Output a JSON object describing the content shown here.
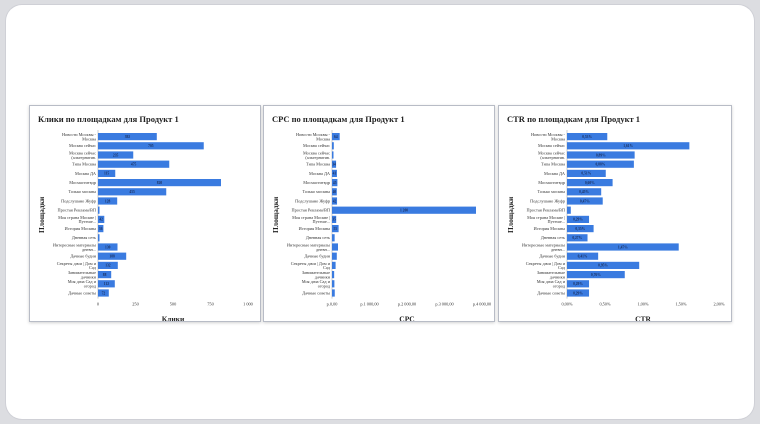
{
  "chart_data": [
    {
      "type": "bar",
      "orientation": "horizontal",
      "title": "Клики по площадкам для Продукт 1",
      "xlabel": "Клики",
      "ylabel": "Площадки",
      "color": "#3a7be0",
      "categories": [
        "Новости Москвы - Москва",
        "Москва сейчас",
        "Москва сейчас (альтернатив. версия)",
        "Типа Москва",
        "Москва ДА",
        "Мосмаститвдр",
        "Только москвы",
        "Подслушано Жуфр",
        "Простая Реклама/ВП",
        "Моя страна Москве | Путеше...",
        "История Москвы",
        "Дневная сеть",
        "Интересные материалы дневн...",
        "Дачные будни",
        "Секреты дачи | Дом и Сад",
        "Занимательные дачники",
        "Моя дача Сад и огород",
        "Дачные советы"
      ],
      "values": [
        392,
        705,
        235,
        475,
        115,
        820,
        455,
        128,
        8,
        42,
        36,
        10,
        130,
        188,
        132,
        88,
        112,
        72
      ],
      "value_labels": [
        "392",
        "705",
        "235",
        "475",
        "115",
        "820",
        "455",
        "128",
        "",
        "42",
        "36",
        "",
        "130",
        "188",
        "132",
        "88",
        "112",
        "72"
      ],
      "xlim": [
        0,
        1000
      ],
      "xticks": [
        "0",
        "250",
        "500",
        "750",
        "1 000"
      ]
    },
    {
      "type": "bar",
      "orientation": "horizontal",
      "title": "CPC по площадкам для Продукт 1",
      "xlabel": "CPC",
      "ylabel": "Площадки",
      "color": "#3a7be0",
      "categories": [
        "Новости Москвы - Москва",
        "Москва сейчас",
        "Москва сейчас (альтернатив. версия)",
        "Типа Москва",
        "Москва ДА",
        "Мосмаститвдр",
        "Только москвы",
        "Подслушано Жуфр",
        "Простая Реклама/ВП",
        "Моя страна Москве | Путеше...",
        "История Москвы",
        "Дневная сеть",
        "Интересные материалы дневн...",
        "Дачные будни",
        "Секреты дачи | Дом и Сад",
        "Занимательные дачники",
        "Моя дача Сад и огород",
        "Дачные советы"
      ],
      "values": [
        64,
        15,
        12,
        34,
        41,
        45,
        40,
        42,
        1200,
        35,
        55,
        22,
        50,
        40,
        30,
        18,
        20,
        23
      ],
      "value_labels": [
        "64",
        "",
        "",
        "34",
        "41",
        "45",
        "40",
        "42",
        "1 200",
        "35",
        "55",
        "",
        "",
        "",
        "",
        "",
        "",
        ""
      ],
      "xlim": [
        0,
        1250
      ],
      "xticks": [
        "р.0,00",
        "р.1 000,00",
        "р.2 000,00",
        "р.3 000,00",
        "р.4 000,00"
      ]
    },
    {
      "type": "bar",
      "orientation": "horizontal",
      "title": "CTR по площадкам для Продукт 1",
      "xlabel": "CTR",
      "ylabel": "Площадки",
      "color": "#3a7be0",
      "categories": [
        "Новости Москвы - Москва",
        "Москва сейчас",
        "Москва сейчас (альтернатив. версия)",
        "Типа Москва",
        "Москва ДА",
        "Мосмаститвдр",
        "Только москвы",
        "Подслушано Жуфр",
        "Простая Реклама/ВП",
        "Моя страна Москве | Путеше...",
        "История Москвы",
        "Дневная сеть",
        "Интересные материалы дневн...",
        "Дачные будни",
        "Секреты дачи | Дом и Сад",
        "Занимательные дачники",
        "Моя дача Сад и огород",
        "Дачные советы"
      ],
      "values": [
        0.53,
        1.61,
        0.89,
        0.88,
        0.51,
        0.6,
        0.45,
        0.47,
        0.05,
        0.29,
        0.35,
        0.27,
        1.47,
        0.41,
        0.95,
        0.76,
        0.29,
        0.29
      ],
      "value_labels": [
        "0,53%",
        "1,61%",
        "0,89%",
        "0,88%",
        "0,51%",
        "0,60%",
        "0,45%",
        "0,47%",
        "",
        "0,29%",
        "0,35%",
        "0,27%",
        "1,47%",
        "0,41%",
        "0,95%",
        "0,76%",
        "0,29%",
        "0,29%"
      ],
      "xlim": [
        0,
        2
      ],
      "xticks": [
        "0,00%",
        "0,50%",
        "1,00%",
        "1,50%",
        "2,00%"
      ]
    }
  ]
}
